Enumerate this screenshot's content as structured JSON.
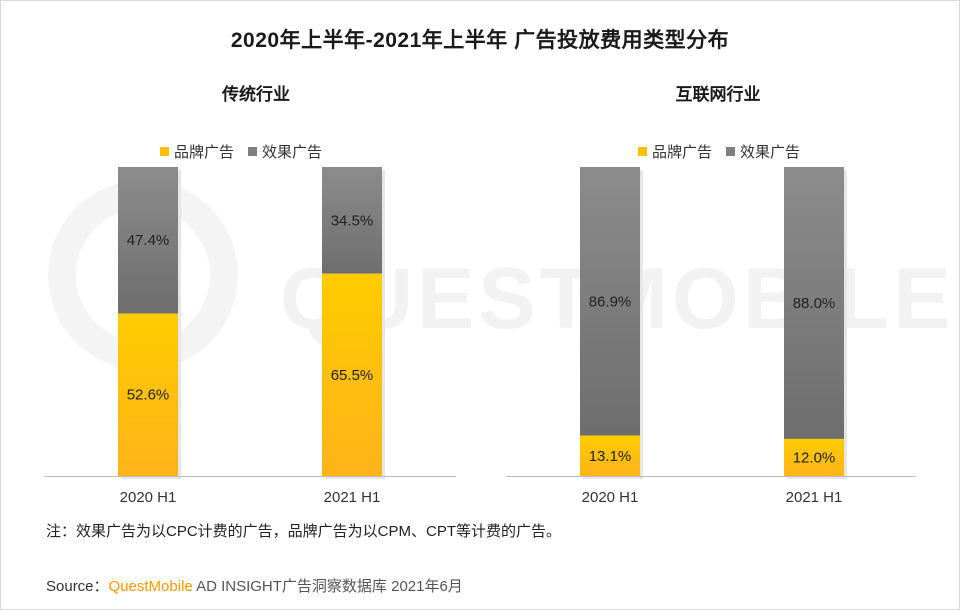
{
  "title": "2020年上半年-2021年上半年 广告投放费用类型分布",
  "legend": {
    "brand": "品牌广告",
    "effect": "效果广告"
  },
  "watermark_text": "QUESTMOBILE",
  "note": "注：效果广告为以CPC计费的广告，品牌广告为以CPM、CPT等计费的广告。",
  "source": {
    "prefix": "Source：",
    "brand": "QuestMobile",
    "rest": " AD INSIGHT广告洞察数据库 2021年6月"
  },
  "colors": {
    "brand": "#ffc000",
    "brand_dark": "#ffb300",
    "effect": "#7f7f7f",
    "effect_dark": "#6b6b6b",
    "axis": "#bfbfbf"
  },
  "chart_data": [
    {
      "type": "bar",
      "stacked": true,
      "title": "传统行业",
      "categories": [
        "2020 H1",
        "2021 H1"
      ],
      "series": [
        {
          "name": "品牌广告",
          "values": [
            52.6,
            65.5
          ]
        },
        {
          "name": "效果广告",
          "values": [
            47.4,
            34.5
          ]
        }
      ],
      "labels": {
        "brand": [
          "52.6%",
          "65.5%"
        ],
        "effect": [
          "47.4%",
          "34.5%"
        ]
      },
      "ylim": [
        0,
        100
      ],
      "legend": "top"
    },
    {
      "type": "bar",
      "stacked": true,
      "title": "互联网行业",
      "categories": [
        "2020 H1",
        "2021 H1"
      ],
      "series": [
        {
          "name": "品牌广告",
          "values": [
            13.1,
            12.0
          ]
        },
        {
          "name": "效果广告",
          "values": [
            86.9,
            88.0
          ]
        }
      ],
      "labels": {
        "brand": [
          "13.1%",
          "12.0%"
        ],
        "effect": [
          "86.9%",
          "88.0%"
        ]
      },
      "ylim": [
        0,
        100
      ],
      "legend": "top"
    }
  ]
}
